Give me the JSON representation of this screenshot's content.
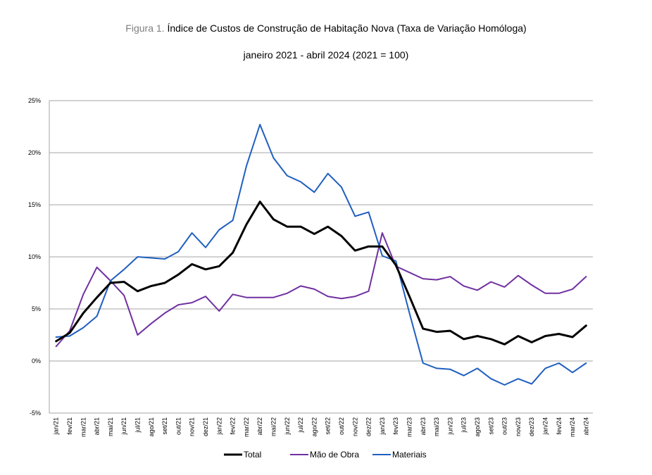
{
  "figure": {
    "prefix": "Figura 1.",
    "title": "Índice de Custos de Construção de Habitação Nova (Taxa de Variação Homóloga)",
    "subtitle": "janeiro 2021 - abril 2024 (2021 = 100)"
  },
  "chart_data": {
    "type": "line",
    "title": "Índice de Custos de Construção de Habitação Nova (Taxa de Variação Homóloga)",
    "subtitle": "janeiro 2021 - abril 2024 (2021 = 100)",
    "xlabel": "",
    "ylabel": "",
    "ylim": [
      -5,
      25
    ],
    "yticks": [
      "25%",
      "20%",
      "15%",
      "10%",
      "5%",
      "0%",
      "-5%"
    ],
    "grid": true,
    "legend_position": "bottom",
    "categories": [
      "jan/21",
      "fev/21",
      "mar/21",
      "abr/21",
      "mai/21",
      "jun/21",
      "jul/21",
      "ago/21",
      "set/21",
      "out/21",
      "nov/21",
      "dez/21",
      "jan/22",
      "fev/22",
      "mar/22",
      "abr/22",
      "mai/22",
      "jun/22",
      "jul/22",
      "ago/22",
      "set/22",
      "out/22",
      "nov/22",
      "dez/22",
      "jan/23",
      "fev/23",
      "mar/23",
      "abr/23",
      "mai/23",
      "jun/23",
      "jul/23",
      "ago/23",
      "set/23",
      "out/23",
      "nov/23",
      "dez/23",
      "jan/24",
      "fev/24",
      "mar/24",
      "abr/24"
    ],
    "series": [
      {
        "name": "Total",
        "color": "#000000",
        "values": [
          1.9,
          2.7,
          4.6,
          6.1,
          7.5,
          7.6,
          6.7,
          7.2,
          7.5,
          8.3,
          9.3,
          8.8,
          9.1,
          10.4,
          13.1,
          15.3,
          13.6,
          12.9,
          12.9,
          12.2,
          12.9,
          12.0,
          10.6,
          11.0,
          11.0,
          9.2,
          6.2,
          3.1,
          2.8,
          2.9,
          2.1,
          2.4,
          2.1,
          1.6,
          2.4,
          1.8,
          2.4,
          2.6,
          2.3,
          3.4
        ]
      },
      {
        "name": "Mão de Obra",
        "color": "#7030a0",
        "values": [
          1.4,
          2.9,
          6.4,
          9.0,
          7.7,
          6.3,
          2.5,
          3.6,
          4.6,
          5.4,
          5.6,
          6.2,
          4.8,
          6.4,
          6.1,
          6.1,
          6.1,
          6.5,
          7.2,
          6.9,
          6.2,
          6.0,
          6.2,
          6.7,
          12.3,
          9.1,
          8.5,
          7.9,
          7.8,
          8.1,
          7.2,
          6.8,
          7.6,
          7.1,
          8.2,
          7.3,
          6.5,
          6.5,
          6.9,
          8.1
        ]
      },
      {
        "name": "Materiais",
        "color": "#1f5fc0",
        "values": [
          2.3,
          2.4,
          3.2,
          4.3,
          7.7,
          8.8,
          10.0,
          9.9,
          9.8,
          10.5,
          12.3,
          10.9,
          12.6,
          13.5,
          18.7,
          22.7,
          19.5,
          17.8,
          17.2,
          16.2,
          18.0,
          16.7,
          13.9,
          14.3,
          10.1,
          9.6,
          4.6,
          -0.2,
          -0.7,
          -0.8,
          -1.4,
          -0.7,
          -1.7,
          -2.3,
          -1.7,
          -2.2,
          -0.7,
          -0.2,
          -1.1,
          -0.2
        ]
      }
    ]
  }
}
